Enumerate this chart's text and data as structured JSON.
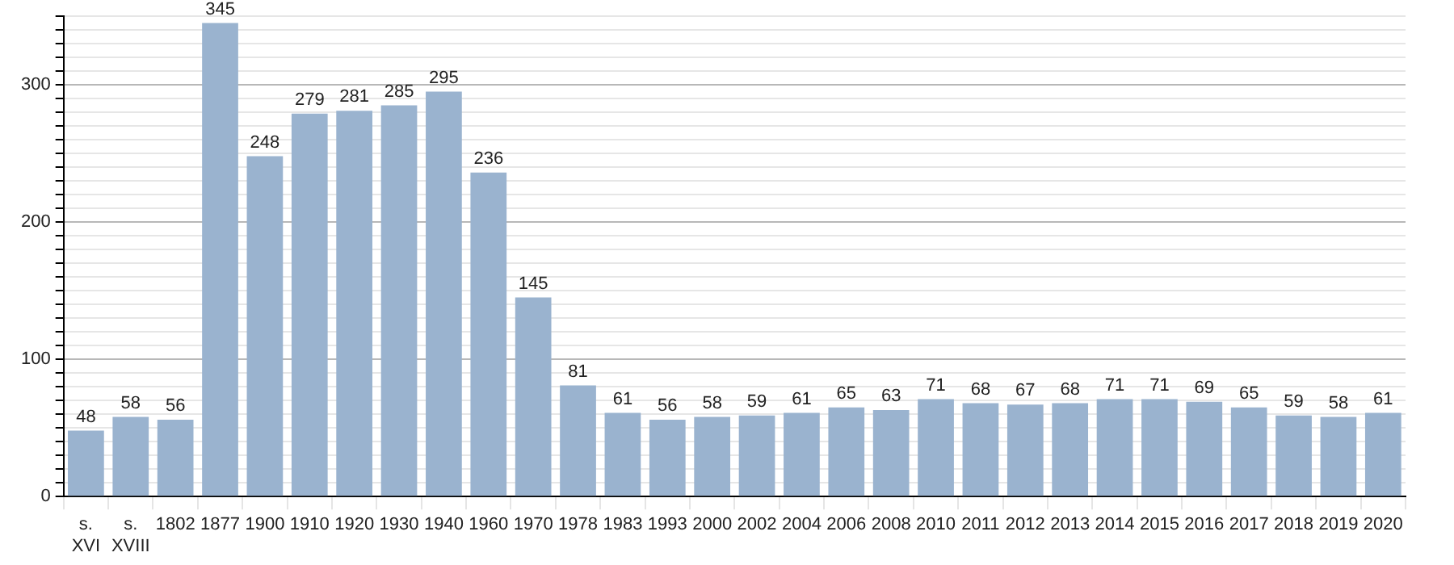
{
  "chart_data": {
    "type": "bar",
    "categories": [
      "s. XVI",
      "s. XVIII",
      "1802",
      "1877",
      "1900",
      "1910",
      "1920",
      "1930",
      "1940",
      "1960",
      "1970",
      "1978",
      "1983",
      "1993",
      "2000",
      "2002",
      "2004",
      "2006",
      "2008",
      "2010",
      "2011",
      "2012",
      "2013",
      "2014",
      "2015",
      "2016",
      "2017",
      "2018",
      "2019",
      "2020"
    ],
    "values": [
      48,
      58,
      56,
      345,
      248,
      279,
      281,
      285,
      295,
      236,
      145,
      81,
      61,
      56,
      58,
      59,
      61,
      65,
      63,
      71,
      68,
      67,
      68,
      71,
      71,
      69,
      65,
      59,
      58,
      61
    ],
    "color": "#9ab3cf",
    "ylim": [
      0,
      350
    ],
    "yticks": [
      0,
      {
        "value": 10,
        "label": null
      },
      {
        "value": 20,
        "label": null
      },
      {
        "value": 30,
        "label": null
      },
      {
        "value": 40,
        "label": null
      },
      {
        "value": 50,
        "label": null
      },
      {
        "value": 60,
        "label": null
      },
      {
        "value": 70,
        "label": null
      },
      {
        "value": 80,
        "label": null
      },
      {
        "value": 90,
        "label": null
      },
      100,
      {
        "value": 110,
        "label": null
      },
      {
        "value": 120,
        "label": null
      },
      {
        "value": 130,
        "label": null
      },
      {
        "value": 140,
        "label": null
      },
      {
        "value": 150,
        "label": null
      },
      {
        "value": 160,
        "label": null
      },
      {
        "value": 170,
        "label": null
      },
      {
        "value": 180,
        "label": null
      },
      {
        "value": 190,
        "label": null
      },
      200,
      {
        "value": 210,
        "label": null
      },
      {
        "value": 220,
        "label": null
      },
      {
        "value": 230,
        "label": null
      },
      {
        "value": 240,
        "label": null
      },
      {
        "value": 250,
        "label": null
      },
      {
        "value": 260,
        "label": null
      },
      {
        "value": 270,
        "label": null
      },
      {
        "value": 280,
        "label": null
      },
      {
        "value": 290,
        "label": null
      },
      300,
      {
        "value": 310,
        "label": null
      },
      {
        "value": 320,
        "label": null
      },
      {
        "value": 330,
        "label": null
      },
      {
        "value": 340,
        "label": null
      },
      {
        "value": 350,
        "label": null
      }
    ],
    "grid": true,
    "data_labels": true
  }
}
